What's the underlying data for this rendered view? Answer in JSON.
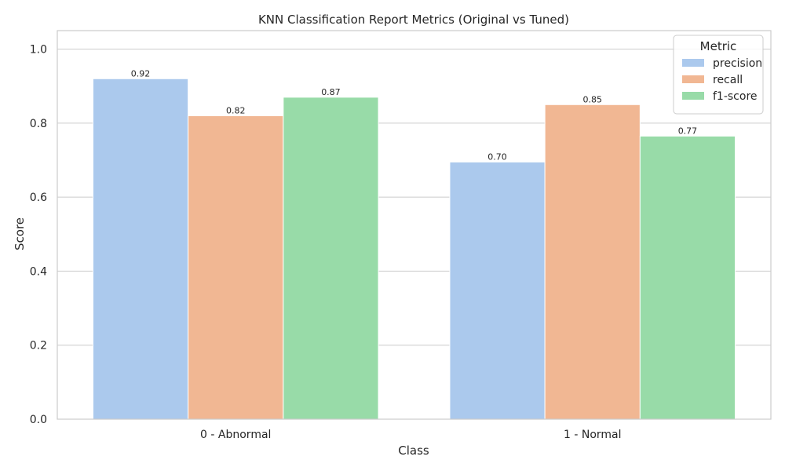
{
  "chart_data": {
    "type": "bar",
    "title": "KNN Classification Report Metrics (Original vs Tuned)",
    "xlabel": "Class",
    "ylabel": "Score",
    "categories": [
      "0 - Abnormal",
      "1 - Normal"
    ],
    "series": [
      {
        "name": "precision",
        "values": [
          0.92,
          0.695
        ],
        "labels": [
          "0.92",
          "0.70"
        ],
        "color": "#abc9ed"
      },
      {
        "name": "recall",
        "values": [
          0.82,
          0.85
        ],
        "labels": [
          "0.82",
          "0.85"
        ],
        "color": "#f1b793"
      },
      {
        "name": "f1-score",
        "values": [
          0.87,
          0.765
        ],
        "labels": [
          "0.87",
          "0.77"
        ],
        "color": "#98dba8"
      }
    ],
    "ylim": [
      0,
      1.05
    ],
    "yticks": [
      0.0,
      0.2,
      0.4,
      0.6,
      0.8,
      1.0
    ],
    "ytick_labels": [
      "0.0",
      "0.2",
      "0.4",
      "0.6",
      "0.8",
      "1.0"
    ],
    "grid": true,
    "legend": {
      "title": "Metric",
      "placement": "top-right"
    }
  }
}
